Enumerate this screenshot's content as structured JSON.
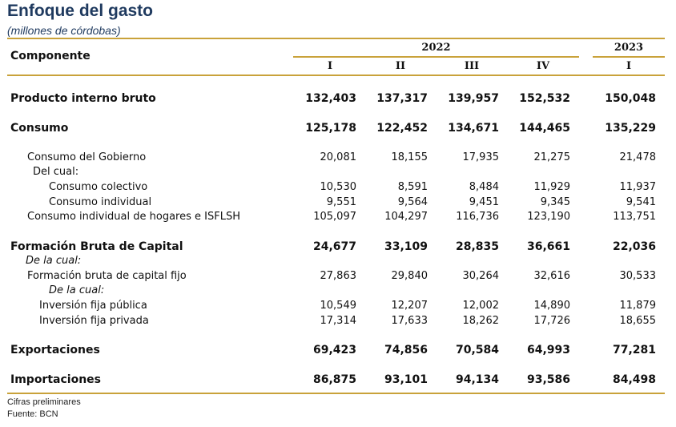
{
  "title": "Enfoque del gasto",
  "subtitle": "(millones de córdobas)",
  "header": {
    "component_label": "Componente",
    "year_2022": "2022",
    "year_2023": "2023",
    "quarters": [
      "I",
      "II",
      "III",
      "IV",
      "I"
    ]
  },
  "rows": [
    {
      "label": "Producto interno bruto",
      "values": [
        "132,403",
        "137,317",
        "139,957",
        "152,532",
        "150,048"
      ]
    },
    {
      "label": "Consumo",
      "values": [
        "125,178",
        "122,452",
        "134,671",
        "144,465",
        "135,229"
      ]
    },
    {
      "label": "Consumo del Gobierno",
      "values": [
        "20,081",
        "18,155",
        "17,935",
        "21,275",
        "21,478"
      ]
    },
    {
      "label": "Del cual:"
    },
    {
      "label": "Consumo colectivo",
      "values": [
        "10,530",
        "8,591",
        "8,484",
        "11,929",
        "11,937"
      ]
    },
    {
      "label": "Consumo individual",
      "values": [
        "9,551",
        "9,564",
        "9,451",
        "9,345",
        "9,541"
      ]
    },
    {
      "label": "Consumo individual de hogares e ISFLSH",
      "values": [
        "105,097",
        "104,297",
        "116,736",
        "123,190",
        "113,751"
      ]
    },
    {
      "label": "Formación Bruta de Capital",
      "values": [
        "24,677",
        "33,109",
        "28,835",
        "36,661",
        "22,036"
      ]
    },
    {
      "label": "De la cual:"
    },
    {
      "label": "Formación bruta de capital fijo",
      "values": [
        "27,863",
        "29,840",
        "30,264",
        "32,616",
        "30,533"
      ]
    },
    {
      "label": "De la cual:"
    },
    {
      "label": "Inversión fija pública",
      "values": [
        "10,549",
        "12,207",
        "12,002",
        "14,890",
        "11,879"
      ]
    },
    {
      "label": "Inversión fija privada",
      "values": [
        "17,314",
        "17,633",
        "18,262",
        "17,726",
        "18,655"
      ]
    },
    {
      "label": "Exportaciones",
      "values": [
        "69,423",
        "74,856",
        "70,584",
        "64,993",
        "77,281"
      ]
    },
    {
      "label": "Importaciones",
      "values": [
        "86,875",
        "93,101",
        "94,134",
        "93,586",
        "84,498"
      ]
    }
  ],
  "footnotes": [
    "Cifras preliminares",
    "Fuente: BCN"
  ],
  "colors": {
    "rule": "#c9a23a",
    "title": "#1f3a5f"
  }
}
